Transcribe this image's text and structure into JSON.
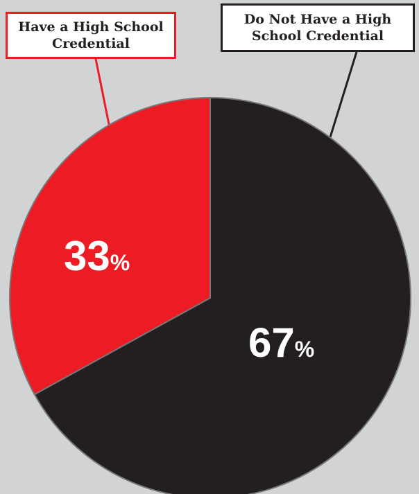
{
  "chart_data": {
    "type": "pie",
    "slices": [
      {
        "key": "have",
        "label": "Have a High School Credential",
        "value": 33,
        "value_text": "33",
        "unit": "%",
        "color": "#ed1c24"
      },
      {
        "key": "havenot",
        "label": "Do Not Have a High School Credential",
        "value": 67,
        "value_text": "67",
        "unit": "%",
        "color": "#231f20"
      }
    ],
    "start": "12 o'clock",
    "direction": "counterclockwise for red slice",
    "background": "#d2d3d5",
    "legend": "callout boxes above the pie"
  }
}
